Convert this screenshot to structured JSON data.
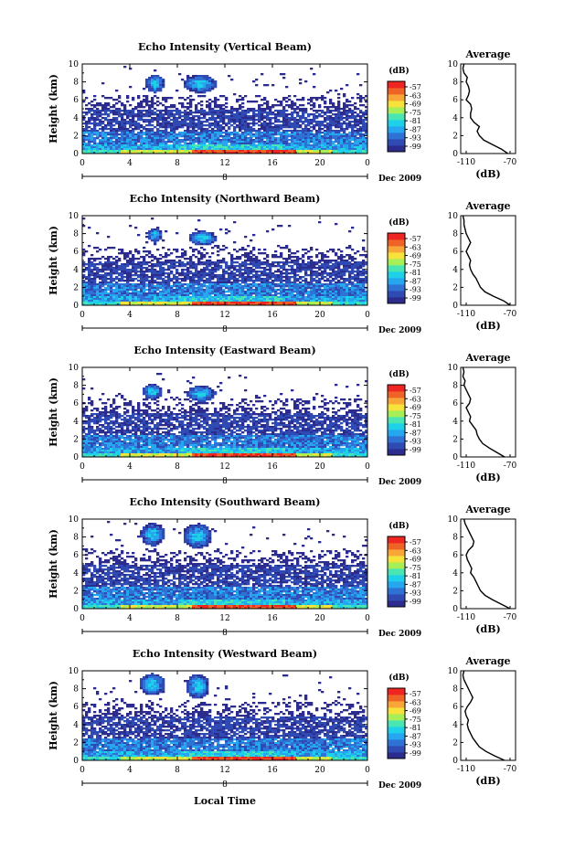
{
  "figure": {
    "xlabel": "Local Time",
    "colorbar_unit": "(dB)",
    "colorbar_ticks": [
      "-57",
      "-63",
      "-69",
      "-75",
      "-81",
      "-87",
      "-93",
      "-99"
    ],
    "colors": [
      "#2b2c8e",
      "#2f4bb3",
      "#2f72d6",
      "#25a6ef",
      "#1ed0e8",
      "#49e6b4",
      "#a6ef57",
      "#f6e23a",
      "#f7a637",
      "#f06327",
      "#ee2520"
    ]
  },
  "chart_data": [
    {
      "type": "heatmap",
      "title": "Echo Intensity (Vertical Beam)",
      "ylabel": "Height (km)",
      "xlim": [
        0,
        24
      ],
      "ylim": [
        0,
        10
      ],
      "x_ticks": [
        "0",
        "4",
        "8",
        "12",
        "16",
        "20",
        "0"
      ],
      "y_ticks": [
        "0",
        "2",
        "4",
        "6",
        "8",
        "10"
      ],
      "date_label": "Dec 2009",
      "date_marker": "8",
      "clim": [
        -99,
        -57
      ],
      "blobs": [
        [
          6.0,
          7.9,
          0.8,
          1.0
        ],
        [
          9.8,
          7.9,
          1.4,
          1.0
        ]
      ],
      "profile": {
        "title": "Average",
        "xlabel": "(dB)",
        "xlim": [
          -115,
          -65
        ],
        "x_ticks": [
          "-110",
          "-70"
        ],
        "y_ticks": [
          "0",
          "2",
          "4",
          "6",
          "8",
          "10"
        ],
        "heights": [
          0,
          0.5,
          1,
          1.5,
          2,
          2.5,
          3,
          3.5,
          4,
          4.5,
          5,
          5.5,
          6,
          6.5,
          7,
          7.5,
          8,
          8.5,
          9,
          9.5,
          10
        ],
        "values": [
          -72,
          -78,
          -86,
          -94,
          -98,
          -100,
          -98,
          -103,
          -106,
          -106,
          -105,
          -106,
          -110,
          -108,
          -107,
          -108,
          -110,
          -109,
          -112,
          -113,
          -112
        ]
      }
    },
    {
      "type": "heatmap",
      "title": "Echo Intensity (Northward Beam)",
      "ylabel": "Height (km)",
      "xlim": [
        0,
        24
      ],
      "ylim": [
        0,
        10
      ],
      "x_ticks": [
        "0",
        "4",
        "8",
        "12",
        "16",
        "20",
        "0"
      ],
      "y_ticks": [
        "0",
        "2",
        "4",
        "6",
        "8",
        "10"
      ],
      "date_label": "Dec 2009",
      "date_marker": "8",
      "clim": [
        -99,
        -57
      ],
      "blobs": [
        [
          6.0,
          7.9,
          0.6,
          0.8
        ],
        [
          10.0,
          7.6,
          1.2,
          0.8
        ]
      ],
      "profile": {
        "title": "Average",
        "xlabel": "(dB)",
        "xlim": [
          -115,
          -65
        ],
        "x_ticks": [
          "-110",
          "-70"
        ],
        "y_ticks": [
          "0",
          "2",
          "4",
          "6",
          "8",
          "10"
        ],
        "heights": [
          0,
          0.5,
          1,
          1.5,
          2,
          2.5,
          3,
          3.5,
          4,
          4.5,
          5,
          5.5,
          6,
          6.5,
          7,
          7.5,
          8,
          8.5,
          9,
          9.5,
          10
        ],
        "values": [
          -70,
          -76,
          -85,
          -93,
          -97,
          -99,
          -101,
          -104,
          -106,
          -107,
          -106,
          -108,
          -110,
          -108,
          -106,
          -108,
          -110,
          -111,
          -112,
          -112,
          -113
        ]
      }
    },
    {
      "type": "heatmap",
      "title": "Echo Intensity (Eastward Beam)",
      "ylabel": "Height (km)",
      "xlim": [
        0,
        24
      ],
      "ylim": [
        0,
        10
      ],
      "x_ticks": [
        "0",
        "4",
        "8",
        "12",
        "16",
        "20",
        "0"
      ],
      "y_ticks": [
        "0",
        "2",
        "4",
        "6",
        "8",
        "10"
      ],
      "date_label": "Dec 2009",
      "date_marker": "8",
      "clim": [
        -99,
        -57
      ],
      "blobs": [
        [
          5.8,
          7.4,
          0.8,
          0.9
        ],
        [
          9.9,
          7.2,
          1.2,
          0.9
        ]
      ],
      "profile": {
        "title": "Average",
        "xlabel": "(dB)",
        "xlim": [
          -115,
          -65
        ],
        "x_ticks": [
          "-110",
          "-70"
        ],
        "y_ticks": [
          "0",
          "2",
          "4",
          "6",
          "8",
          "10"
        ],
        "heights": [
          0,
          0.5,
          1,
          1.5,
          2,
          2.5,
          3,
          3.5,
          4,
          4.5,
          5,
          5.5,
          6,
          6.5,
          7,
          7.5,
          8,
          8.5,
          9,
          9.5,
          10
        ],
        "values": [
          -75,
          -82,
          -89,
          -95,
          -98,
          -100,
          -101,
          -104,
          -107,
          -106,
          -108,
          -110,
          -107,
          -106,
          -108,
          -110,
          -112,
          -111,
          -113,
          -112,
          -113
        ]
      }
    },
    {
      "type": "heatmap",
      "title": "Echo Intensity (Southward Beam)",
      "ylabel": "Height (km)",
      "xlim": [
        0,
        24
      ],
      "ylim": [
        0,
        10
      ],
      "x_ticks": [
        "0",
        "4",
        "8",
        "12",
        "16",
        "20",
        "0"
      ],
      "y_ticks": [
        "0",
        "2",
        "4",
        "6",
        "8",
        "10"
      ],
      "date_label": "Dec 2009",
      "date_marker": "8",
      "clim": [
        -99,
        -57
      ],
      "blobs": [
        [
          5.8,
          8.4,
          1.0,
          1.3
        ],
        [
          9.6,
          8.2,
          1.2,
          1.4
        ]
      ],
      "profile": {
        "title": "Average",
        "xlabel": "(dB)",
        "xlim": [
          -115,
          -65
        ],
        "x_ticks": [
          "-110",
          "-70"
        ],
        "y_ticks": [
          "0",
          "2",
          "4",
          "6",
          "8",
          "10"
        ],
        "heights": [
          0,
          0.5,
          1,
          1.5,
          2,
          2.5,
          3,
          3.5,
          4,
          4.5,
          5,
          5.5,
          6,
          6.5,
          7,
          7.5,
          8,
          8.5,
          9,
          9.5,
          10
        ],
        "values": [
          -70,
          -78,
          -86,
          -93,
          -97,
          -99,
          -101,
          -103,
          -106,
          -105,
          -107,
          -109,
          -110,
          -108,
          -104,
          -103,
          -105,
          -107,
          -109,
          -111,
          -112
        ]
      }
    },
    {
      "type": "heatmap",
      "title": "Echo Intensity (Westward Beam)",
      "ylabel": "Height (km)",
      "xlim": [
        0,
        24
      ],
      "ylim": [
        0,
        10
      ],
      "x_ticks": [
        "0",
        "4",
        "8",
        "12",
        "16",
        "20",
        "0"
      ],
      "y_ticks": [
        "0",
        "2",
        "4",
        "6",
        "8",
        "10"
      ],
      "date_label": "Dec 2009",
      "date_marker": "8",
      "clim": [
        -99,
        -57
      ],
      "blobs": [
        [
          5.8,
          8.6,
          1.1,
          1.2
        ],
        [
          9.6,
          8.4,
          1.0,
          1.4
        ]
      ],
      "profile": {
        "title": "Average",
        "xlabel": "(dB)",
        "xlim": [
          -115,
          -65
        ],
        "x_ticks": [
          "-110",
          "-70"
        ],
        "y_ticks": [
          "0",
          "2",
          "4",
          "6",
          "8",
          "10"
        ],
        "heights": [
          0,
          0.5,
          1,
          1.5,
          2,
          2.5,
          3,
          3.5,
          4,
          4.5,
          5,
          5.5,
          6,
          6.5,
          7,
          7.5,
          8,
          8.5,
          9,
          9.5,
          10
        ],
        "values": [
          -75,
          -84,
          -92,
          -98,
          -101,
          -104,
          -106,
          -108,
          -109,
          -108,
          -110,
          -111,
          -109,
          -106,
          -104,
          -106,
          -108,
          -110,
          -112,
          -113,
          -112
        ]
      }
    }
  ]
}
